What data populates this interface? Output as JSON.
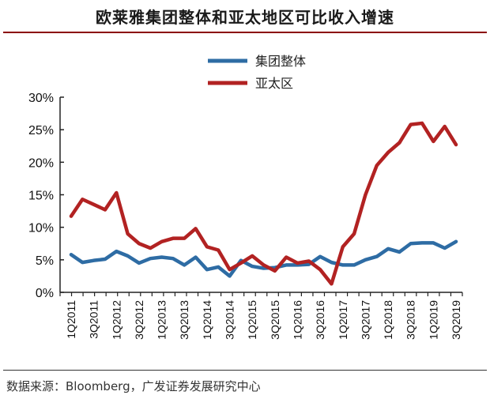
{
  "title": "欧莱雅集团整体和亚太地区可比收入增速",
  "source": "数据来源：Bloomberg，广发证券发展研究中心",
  "chart_data": {
    "type": "line",
    "title": "欧莱雅集团整体和亚太地区可比收入增速",
    "xlabel": "",
    "ylabel": "",
    "ylim": [
      0,
      30
    ],
    "yticks": [
      "0%",
      "5%",
      "10%",
      "15%",
      "20%",
      "25%",
      "30%"
    ],
    "legend_position": "top-center",
    "x": [
      "1Q2011",
      "2Q2011",
      "3Q2011",
      "4Q2011",
      "1Q2012",
      "2Q2012",
      "3Q2012",
      "4Q2012",
      "1Q2013",
      "2Q2013",
      "3Q2013",
      "4Q2013",
      "1Q2014",
      "2Q2014",
      "3Q2014",
      "4Q2014",
      "1Q2015",
      "2Q2015",
      "3Q2015",
      "4Q2015",
      "1Q2016",
      "2Q2016",
      "3Q2016",
      "4Q2016",
      "1Q2017",
      "2Q2017",
      "3Q2017",
      "4Q2017",
      "1Q2018",
      "2Q2018",
      "3Q2018",
      "4Q2018",
      "1Q2019",
      "2Q2019",
      "3Q2019"
    ],
    "xtick_labels": [
      "1Q2011",
      "3Q2011",
      "1Q2012",
      "3Q2012",
      "1Q2013",
      "3Q2013",
      "1Q2014",
      "3Q2014",
      "1Q2015",
      "3Q2015",
      "1Q2016",
      "3Q2016",
      "1Q2017",
      "3Q2017",
      "1Q2018",
      "3Q2018",
      "1Q2019",
      "3Q2019"
    ],
    "series": [
      {
        "name": "集团整体",
        "color": "#2e6ca4",
        "values": [
          5.8,
          4.6,
          4.9,
          5.1,
          6.3,
          5.6,
          4.5,
          5.2,
          5.4,
          5.2,
          4.2,
          5.4,
          3.5,
          3.9,
          2.5,
          4.9,
          4.0,
          3.7,
          3.8,
          4.2,
          4.2,
          4.3,
          5.5,
          4.6,
          4.2,
          4.2,
          5.0,
          5.5,
          6.7,
          6.2,
          7.5,
          7.6,
          7.6,
          6.8,
          7.8
        ]
      },
      {
        "name": "亚太区",
        "color": "#b22222",
        "values": [
          11.7,
          14.3,
          13.5,
          12.7,
          15.3,
          9.0,
          7.5,
          6.8,
          7.8,
          8.3,
          8.3,
          9.8,
          7.0,
          6.5,
          3.5,
          4.5,
          5.6,
          4.2,
          3.3,
          5.4,
          4.5,
          4.8,
          3.5,
          1.3,
          7.0,
          9.0,
          15.0,
          19.5,
          21.5,
          23.0,
          25.8,
          26.0,
          23.2,
          25.5,
          22.7
        ]
      }
    ]
  }
}
